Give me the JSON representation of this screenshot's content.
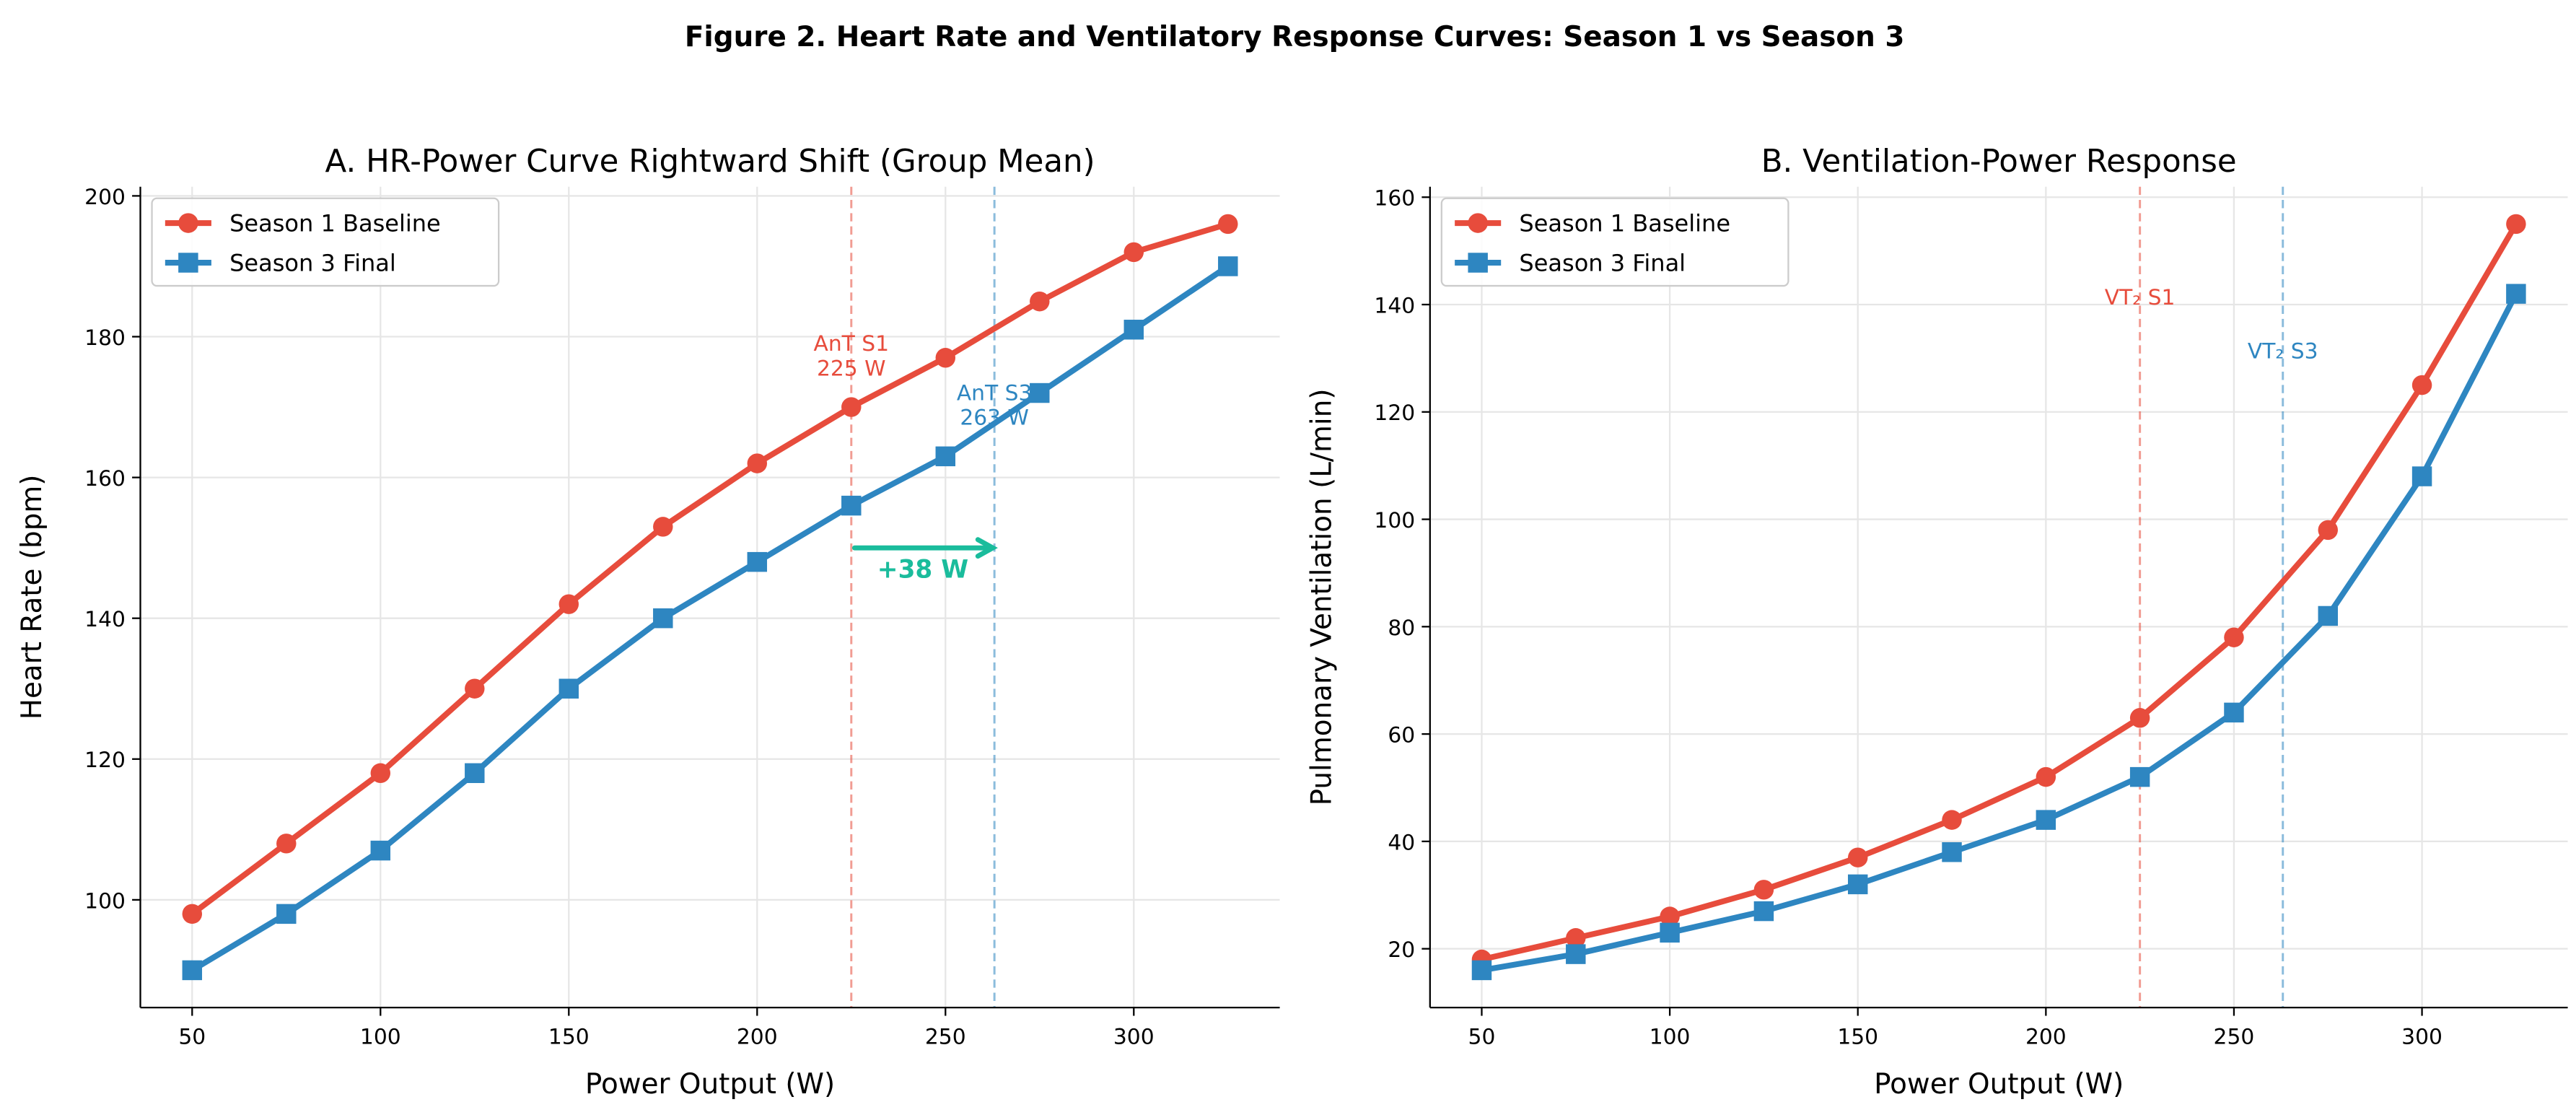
{
  "suptitle": "Figure 2. Heart Rate and Ventilatory Response Curves: Season 1 vs Season 3",
  "colors": {
    "season1": "#e74c3c",
    "season3": "#2e86c1",
    "shift": "#1abc9c",
    "grid": "#e6e6e6"
  },
  "chart_data": [
    {
      "type": "line",
      "title": "A. HR-Power Curve Rightward Shift (Group Mean)",
      "xlabel": "Power Output (W)",
      "ylabel": "Heart Rate (bpm)",
      "xlim": [
        36.25,
        338.75
      ],
      "ylim": [
        84.7,
        201.3
      ],
      "xticks": [
        50,
        100,
        150,
        200,
        250,
        300
      ],
      "yticks": [
        100,
        120,
        140,
        160,
        180,
        200
      ],
      "grid": true,
      "legend": "top-left",
      "x": [
        50,
        75,
        100,
        125,
        150,
        175,
        200,
        225,
        250,
        275,
        300,
        325
      ],
      "series": [
        {
          "name": "Season 1 Baseline",
          "marker": "circle",
          "color": "#e74c3c",
          "values": [
            98,
            108,
            118,
            130,
            142,
            153,
            162,
            170,
            177,
            185,
            192,
            196
          ]
        },
        {
          "name": "Season 3 Final",
          "marker": "square",
          "color": "#2e86c1",
          "values": [
            90,
            98,
            107,
            118,
            130,
            140,
            148,
            156,
            163,
            172,
            181,
            190
          ]
        }
      ],
      "vlines": [
        {
          "x": 225,
          "color": "#e74c3c",
          "label_lines": [
            "AnT S1",
            "225 W"
          ],
          "label_y": 178
        },
        {
          "x": 263,
          "color": "#2e86c1",
          "label_lines": [
            "AnT S3",
            "263 W"
          ],
          "label_y": 171
        }
      ],
      "arrow": {
        "from": 225,
        "to": 263,
        "y": 150,
        "label": "+38 W",
        "color": "#1abc9c"
      }
    },
    {
      "type": "line",
      "title": "B. Ventilation-Power Response",
      "xlabel": "Power Output (W)",
      "ylabel": "Pulmonary Ventilation (L/min)",
      "xlim": [
        36.25,
        338.75
      ],
      "ylim": [
        9.05,
        161.95
      ],
      "xticks": [
        50,
        100,
        150,
        200,
        250,
        300
      ],
      "yticks": [
        20,
        40,
        60,
        80,
        100,
        120,
        140,
        160
      ],
      "grid": true,
      "legend": "top-left",
      "x": [
        50,
        75,
        100,
        125,
        150,
        175,
        200,
        225,
        250,
        275,
        300,
        325
      ],
      "series": [
        {
          "name": "Season 1 Baseline",
          "marker": "circle",
          "color": "#e74c3c",
          "values": [
            18,
            22,
            26,
            31,
            37,
            44,
            52,
            63,
            78,
            98,
            125,
            155
          ]
        },
        {
          "name": "Season 3 Final",
          "marker": "square",
          "color": "#2e86c1",
          "values": [
            16,
            19,
            23,
            27,
            32,
            38,
            44,
            52,
            64,
            82,
            108,
            142
          ]
        }
      ],
      "vlines": [
        {
          "x": 225,
          "color": "#e74c3c",
          "label_lines": [
            "VT₂ S1"
          ],
          "label_y": 140
        },
        {
          "x": 263,
          "color": "#2e86c1",
          "label_lines": [
            "VT₂ S3"
          ],
          "label_y": 130
        }
      ]
    }
  ]
}
